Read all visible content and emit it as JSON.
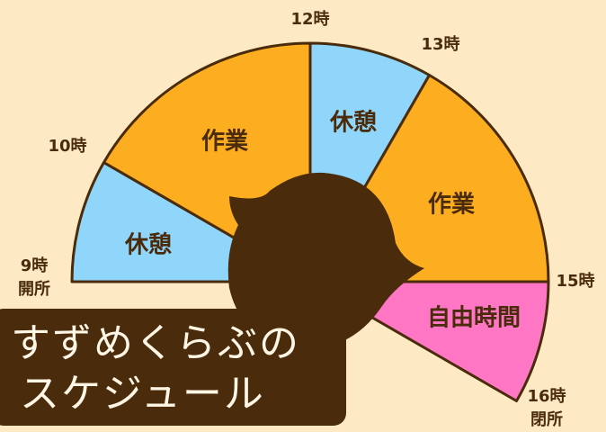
{
  "title": {
    "line1": "すずめくらぶの",
    "line2": "スケジュール"
  },
  "segments": [
    {
      "label": "休憩"
    },
    {
      "label": "作業"
    },
    {
      "label": "休憩"
    },
    {
      "label": "作業"
    },
    {
      "label": "自由時間"
    }
  ],
  "hours": [
    {
      "label": "9時",
      "note": "開所"
    },
    {
      "label": "10時"
    },
    {
      "label": "12時"
    },
    {
      "label": "13時"
    },
    {
      "label": "15時"
    },
    {
      "label": "16時",
      "note": "閉所"
    }
  ]
}
